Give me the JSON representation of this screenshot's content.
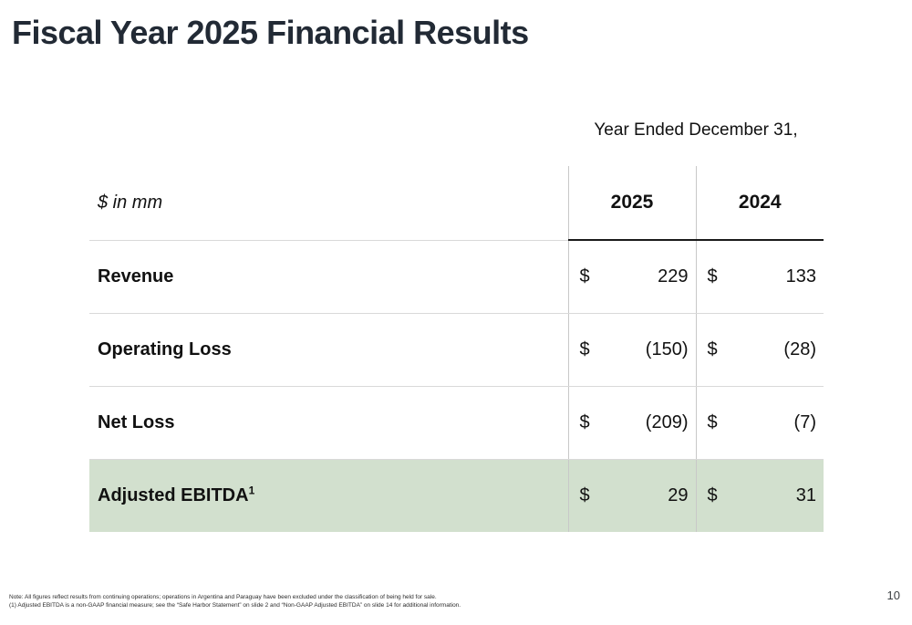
{
  "slide": {
    "title": "Fiscal Year 2025 Financial Results",
    "page_number": "10"
  },
  "table": {
    "caption": "Year Ended December 31,",
    "unit_label": "$ in mm",
    "col_headers": [
      "2025",
      "2024"
    ],
    "highlight_color": "#d2e0ce",
    "rows": [
      {
        "label": "Revenue",
        "values": [
          {
            "currency": "$",
            "amount": "229"
          },
          {
            "currency": "$",
            "amount": "133"
          }
        ]
      },
      {
        "label": "Operating Loss",
        "values": [
          {
            "currency": "$",
            "amount": "(150)"
          },
          {
            "currency": "$",
            "amount": "(28)"
          }
        ]
      },
      {
        "label": "Net Loss",
        "values": [
          {
            "currency": "$",
            "amount": "(209)"
          },
          {
            "currency": "$",
            "amount": "(7)"
          }
        ]
      },
      {
        "label": "Adjusted EBITDA",
        "footnote_ref": "1",
        "highlight": true,
        "values": [
          {
            "currency": "$",
            "amount": "29"
          },
          {
            "currency": "$",
            "amount": "31"
          }
        ]
      }
    ]
  },
  "footnotes": [
    "Note: All figures reflect results from continuing operations; operations in Argentina and Paraguay have been excluded under the classification of being held for sale.",
    "(1) Adjusted EBITDA is a non-GAAP financial measure; see the “Safe Harbor Statement” on slide 2 and “Non-GAAP Adjusted EBITDA” on slide 14 for additional information."
  ]
}
